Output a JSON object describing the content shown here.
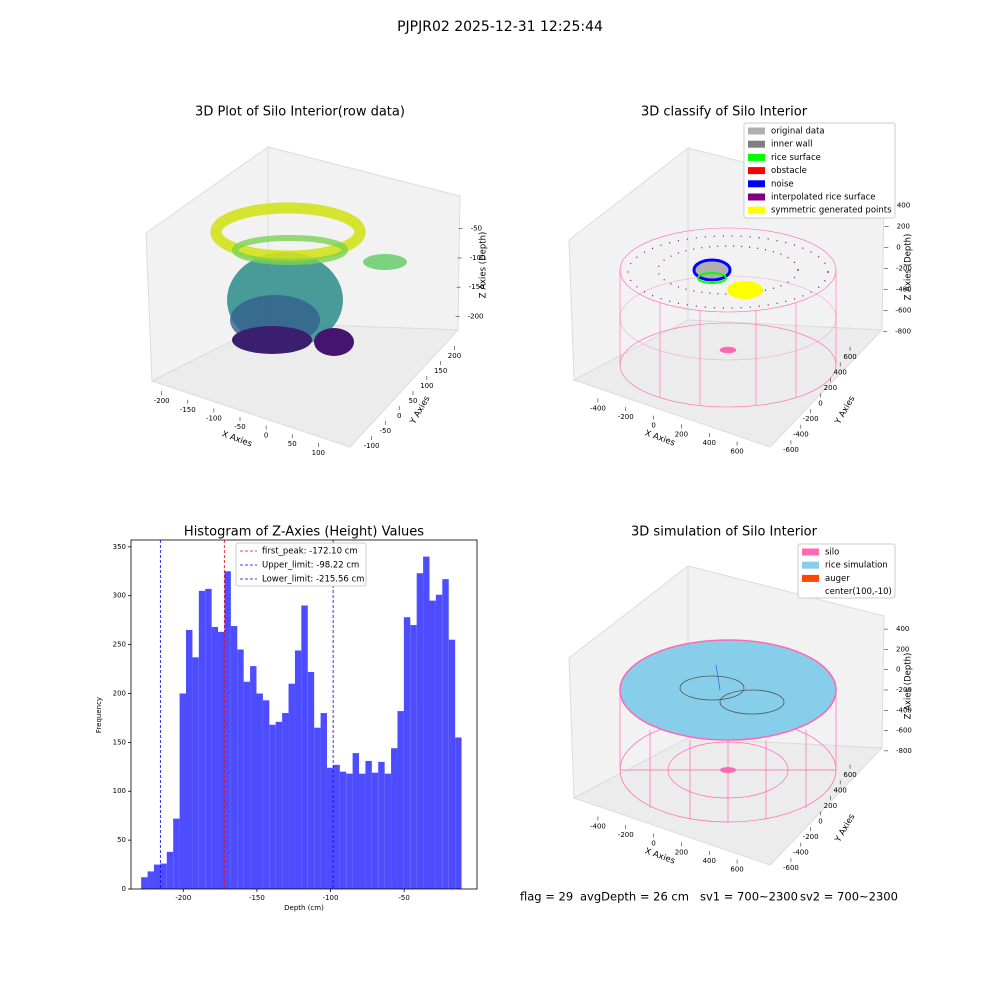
{
  "suptitle": "PJPJR02 2025-12-31 12:25:44",
  "chart_data": [
    {
      "type": "scatter3d",
      "title": "3D Plot of Silo Interior(row data)",
      "xlabel": "X Axies",
      "ylabel": "Y Axies",
      "zlabel": "Z Axies (Depth)",
      "xlim": [
        -230,
        130
      ],
      "xticks": [
        -200,
        -150,
        -100,
        -50,
        0,
        50,
        100
      ],
      "ylim": [
        -120,
        220
      ],
      "yticks": [
        -100,
        -50,
        0,
        50,
        100,
        150,
        200
      ],
      "zlim": [
        -230,
        -30
      ],
      "zticks": [
        -200,
        -150,
        -100,
        -50
      ]
    },
    {
      "type": "scatter3d",
      "title": "3D classify of Silo Interior",
      "xlabel": "X Axies",
      "ylabel": "Y Axies",
      "zlabel": "Z Axies (Depth)",
      "xlim": [
        -500,
        700
      ],
      "xticks": [
        -400,
        -200,
        0,
        200,
        400,
        600
      ],
      "ylim": [
        -700,
        700
      ],
      "yticks": [
        -600,
        -400,
        -200,
        0,
        200,
        400,
        600
      ],
      "zlim": [
        -900,
        500
      ],
      "zticks": [
        -800,
        -600,
        -400,
        -200,
        0,
        200,
        400
      ],
      "legend": [
        {
          "name": "original data",
          "color": "#b0b0b0"
        },
        {
          "name": "inner wall",
          "color": "#808080"
        },
        {
          "name": "rice surface",
          "color": "#00ff00"
        },
        {
          "name": "obstacle",
          "color": "#ff0000"
        },
        {
          "name": "noise",
          "color": "#0000ff"
        },
        {
          "name": "interpolated rice surface",
          "color": "#800080"
        },
        {
          "name": "symmetric generated points",
          "color": "#ffff00"
        }
      ]
    },
    {
      "type": "histogram",
      "title": "Histogram of Z-Axies (Height) Values",
      "xlabel": "Depth (cm)",
      "ylabel": "Frequency",
      "color": "#4d4dff",
      "bins": [
        -228.6,
        -224.25,
        -219.9,
        -215.54,
        -211.19,
        -206.84,
        -202.49,
        -198.14,
        -193.78,
        -189.43,
        -185.08,
        -180.73,
        -176.38,
        -172.02,
        -167.67,
        -163.32,
        -158.97,
        -154.62,
        -150.26,
        -145.91,
        -141.56,
        -137.21,
        -132.86,
        -128.5,
        -124.15,
        -119.8,
        -115.45,
        -111.1,
        -106.74,
        -102.39,
        -98.04,
        -93.69,
        -89.34,
        -84.98,
        -80.63,
        -76.28,
        -71.93,
        -67.58,
        -63.22,
        -58.87,
        -54.52,
        -50.17,
        -45.82,
        -41.46,
        -37.11,
        -32.76,
        -28.41,
        -24.06,
        -19.7,
        -15.35,
        -11.0
      ],
      "values": [
        12,
        18,
        25,
        26,
        38,
        72,
        200,
        265,
        237,
        305,
        307,
        268,
        263,
        325,
        269,
        245,
        212,
        228,
        200,
        193,
        168,
        171,
        180,
        210,
        244,
        290,
        222,
        165,
        180,
        124,
        127,
        120,
        118,
        139,
        118,
        131,
        119,
        130,
        118,
        144,
        182,
        278,
        270,
        323,
        340,
        295,
        301,
        317,
        255,
        155
      ],
      "xlim": [
        -235.5,
        -0.5
      ],
      "xticks": [
        -200,
        -150,
        -100,
        -50
      ],
      "ylim": [
        0,
        357
      ],
      "yticks": [
        0,
        50,
        100,
        150,
        200,
        250,
        300,
        350
      ],
      "vlines": [
        {
          "name": "first_peak: -172.10 cm",
          "value": -172.1,
          "color": "#ff0000"
        },
        {
          "name": "Upper_limit: -98.22 cm",
          "value": -98.22,
          "color": "#0000ff"
        },
        {
          "name": "Lower_limit: -215.56 cm",
          "value": -215.56,
          "color": "#0000ff"
        }
      ]
    },
    {
      "type": "scatter3d",
      "title": "3D simulation of Silo Interior",
      "xlabel": "X Axies",
      "ylabel": "Y Axies",
      "zlabel": "Z Axies (Depth)",
      "xlim": [
        -500,
        700
      ],
      "xticks": [
        -400,
        -200,
        0,
        200,
        400,
        600
      ],
      "ylim": [
        -700,
        700
      ],
      "yticks": [
        -600,
        -400,
        -200,
        0,
        200,
        400,
        600
      ],
      "zlim": [
        -900,
        500
      ],
      "zticks": [
        -800,
        -600,
        -400,
        -200,
        0,
        200,
        400
      ],
      "legend": [
        {
          "name": "silo",
          "color": "#ff69b4"
        },
        {
          "name": "rice simulation",
          "color": "#87ceeb"
        },
        {
          "name": "auger",
          "color": "#ff4500"
        },
        {
          "name": "center(100,-10)"
        }
      ]
    }
  ],
  "footer": [
    "flag = 29",
    "avgDepth = 26 cm",
    "sv1 = 700~2300",
    "sv2 = 700~2300"
  ]
}
